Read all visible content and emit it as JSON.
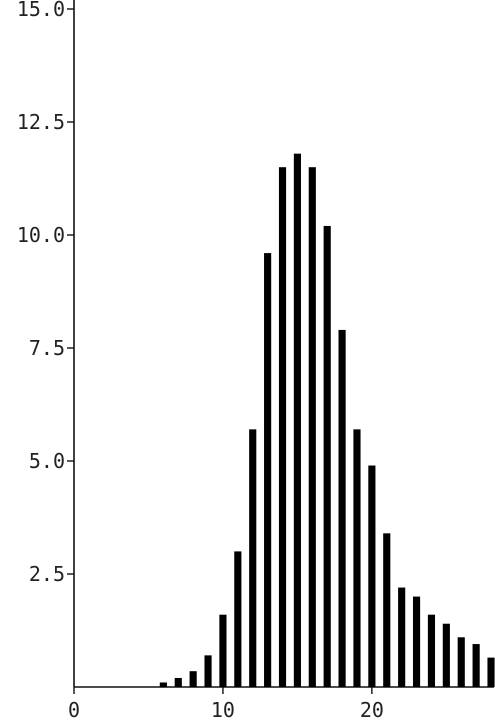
{
  "chart_data": {
    "type": "bar",
    "title": "",
    "xlabel": "",
    "ylabel": "",
    "x": [
      6,
      7,
      8,
      9,
      10,
      11,
      12,
      13,
      14,
      15,
      16,
      17,
      18,
      19,
      20,
      21,
      22,
      23,
      24,
      25,
      26,
      27,
      28
    ],
    "values": [
      0.1,
      0.2,
      0.35,
      0.7,
      1.6,
      3.0,
      5.7,
      9.6,
      11.5,
      11.8,
      11.5,
      10.2,
      7.9,
      5.7,
      4.9,
      3.4,
      2.2,
      2.0,
      1.6,
      1.4,
      1.1,
      0.95,
      0.65
    ],
    "xlim": [
      0,
      28.2
    ],
    "ylim": [
      0,
      15
    ],
    "x_ticks": [
      0,
      10,
      20
    ],
    "y_ticks": [
      2.5,
      5.0,
      7.5,
      10.0,
      12.5,
      15.0
    ],
    "x_tick_labels": [
      "0",
      "10",
      "20"
    ],
    "y_tick_labels": [
      "2.5",
      "5.0",
      "7.5",
      "10.0",
      "12.5",
      "15.0"
    ],
    "grid": false,
    "legend": "none",
    "bar_color": "#000000"
  }
}
